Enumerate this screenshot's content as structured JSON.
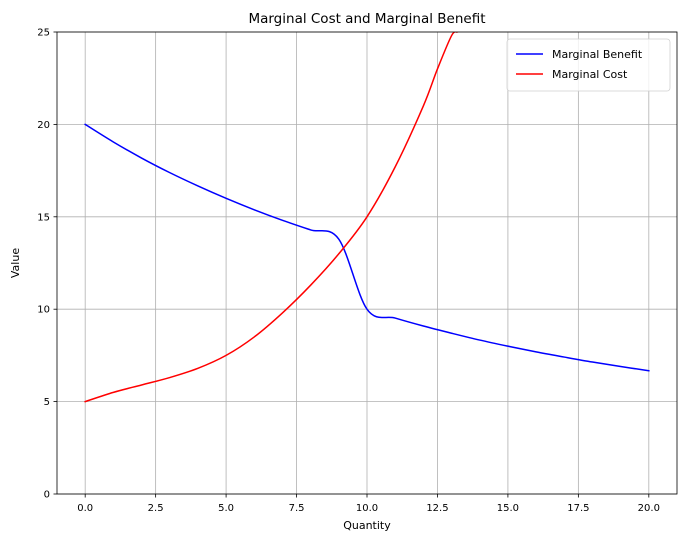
{
  "chart_data": {
    "type": "line",
    "title": "Marginal Cost and Marginal Benefit",
    "xlabel": "Quantity",
    "ylabel": "Value",
    "xlim": [
      -1.0,
      21.0
    ],
    "ylim": [
      0,
      25
    ],
    "xticks": [
      0.0,
      2.5,
      5.0,
      7.5,
      10.0,
      12.5,
      15.0,
      17.5,
      20.0
    ],
    "xtick_labels": [
      "0.0",
      "2.5",
      "5.0",
      "7.5",
      "10.0",
      "12.5",
      "15.0",
      "17.5",
      "20.0"
    ],
    "yticks": [
      0,
      5,
      10,
      15,
      20,
      25
    ],
    "ytick_labels": [
      "0",
      "5",
      "10",
      "15",
      "20",
      "25"
    ],
    "grid": true,
    "legend_position": "top-right",
    "series": [
      {
        "name": "Marginal Benefit",
        "color": "#0000ff",
        "x": [
          0,
          1,
          2,
          3,
          4,
          5,
          6,
          7,
          8,
          9,
          10,
          11,
          12,
          13,
          14,
          15,
          16,
          17,
          18,
          19,
          20
        ],
        "y": [
          20.0,
          19.05,
          18.18,
          17.39,
          16.67,
          16.0,
          15.38,
          14.81,
          14.29,
          13.79,
          10.0,
          9.52,
          9.09,
          8.7,
          8.33,
          8.0,
          7.69,
          7.41,
          7.14,
          6.9,
          6.67
        ]
      },
      {
        "name": "Marginal Cost",
        "color": "#ff0000",
        "x": [
          0,
          1,
          2,
          3,
          4,
          5,
          6,
          7,
          8,
          9,
          10,
          11,
          12,
          12.5,
          13.0,
          13.2
        ],
        "y": [
          5.0,
          5.5,
          5.9,
          6.3,
          6.8,
          7.5,
          8.5,
          9.8,
          11.3,
          13.0,
          15.0,
          17.7,
          21.0,
          23.0,
          24.8,
          25.0
        ]
      }
    ]
  }
}
